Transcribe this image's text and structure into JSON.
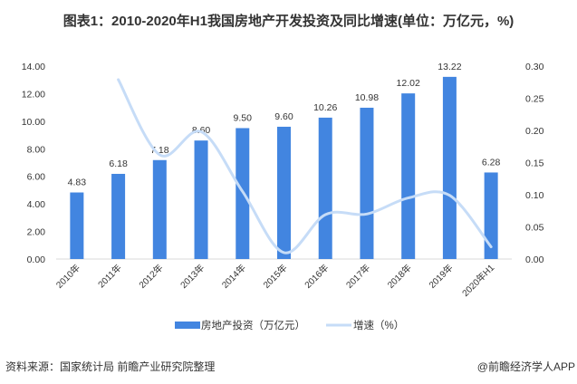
{
  "title": "图表1：2010-2020年H1我国房地产开发投资及同比增速(单位：万亿元，%)",
  "source": "资料来源：国家统计局 前瞻产业研究院整理",
  "credit": "@前瞻经济学人APP",
  "watermark": "前瞻产业研究院",
  "chart_data": {
    "type": "bar+line",
    "categories": [
      "2010年",
      "2011年",
      "2012年",
      "2013年",
      "2014年",
      "2015年",
      "2016年",
      "2017年",
      "2018年",
      "2019年",
      "2020年H1"
    ],
    "series": [
      {
        "name": "房地产投资（万亿元）",
        "type": "bar",
        "axis": "left",
        "color": "#4285e0",
        "values": [
          4.83,
          6.18,
          7.18,
          8.6,
          9.5,
          9.6,
          10.26,
          10.98,
          12.02,
          13.22,
          6.28
        ],
        "labels": [
          "4.83",
          "6.18",
          "7.18",
          "8.60",
          "9.50",
          "9.60",
          "10.26",
          "10.98",
          "12.02",
          "13.22",
          "6.28"
        ]
      },
      {
        "name": "增速（%）",
        "type": "line",
        "axis": "right",
        "color": "#c6dcf7",
        "smooth": true,
        "values": [
          null,
          0.279,
          0.162,
          0.198,
          0.105,
          0.01,
          0.069,
          0.07,
          0.095,
          0.099,
          0.019
        ]
      }
    ],
    "yleft": {
      "range": [
        0,
        14
      ],
      "ticks": [
        "0.00",
        "2.00",
        "4.00",
        "6.00",
        "8.00",
        "10.00",
        "12.00",
        "14.00"
      ]
    },
    "yright": {
      "range": [
        0,
        0.3
      ],
      "ticks": [
        "0.00",
        "0.05",
        "0.10",
        "0.15",
        "0.20",
        "0.25",
        "0.30"
      ]
    },
    "grid": false,
    "legend": "bottom"
  }
}
